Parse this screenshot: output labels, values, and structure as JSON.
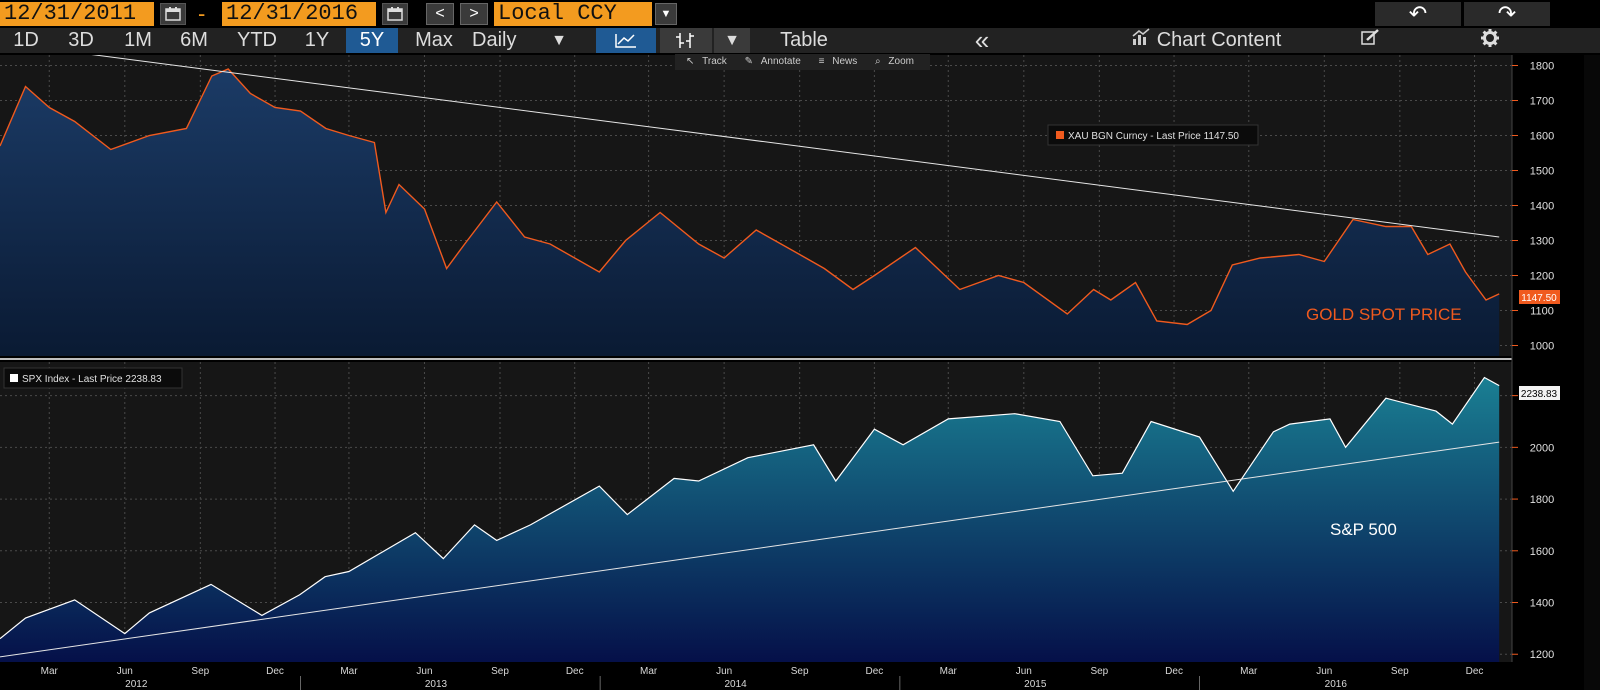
{
  "toolbar": {
    "start_date": "12/31/2011",
    "dash": "-",
    "end_date": "12/31/2016",
    "prev": "<",
    "next": ">",
    "currency": "Local CCY",
    "currency_caret": "▼",
    "undo": "↶",
    "redo": "↷"
  },
  "toolbar2": {
    "ranges": [
      "1D",
      "3D",
      "1M",
      "6M",
      "YTD",
      "1Y",
      "5Y",
      "Max"
    ],
    "selected_range": "5Y",
    "frequency": "Daily",
    "frequency_caret": "▼",
    "type_caret": "▼",
    "table": "Table",
    "collapse": "«",
    "chart_content": "Chart Content",
    "edit_icon": "pencil-icon",
    "settings_icon": "gear-icon"
  },
  "subtools": {
    "track": "Track",
    "annotate": "Annotate",
    "news": "News",
    "zoom": "Zoom"
  },
  "colors": {
    "gold_line": "#f05a1e",
    "gold_fill_top": "#1b3b66",
    "gold_fill_bottom": "#0a1a33",
    "spx_fill_top": "#1a7f93",
    "spx_fill_bottom": "#051049",
    "accent": "#f39b1f",
    "selected": "#1f5a94"
  },
  "chart_data": [
    {
      "type": "area",
      "legend": "XAU BGN Curncy - Last Price 1147.50",
      "last_value_label": "1147.50",
      "annotation": "GOLD SPOT PRICE",
      "ylim": [
        970,
        1830
      ],
      "yticks": [
        1000,
        1100,
        1200,
        1300,
        1400,
        1500,
        1600,
        1700,
        1800
      ],
      "grid": true,
      "trendline": {
        "start": [
          "2012-01-02",
          1865
        ],
        "end": [
          "2016-12-31",
          1310
        ]
      },
      "series": [
        {
          "x": [
            "2012-01-01",
            "2012-02-01",
            "2012-03-01",
            "2012-04-01",
            "2012-05-15",
            "2012-07-01",
            "2012-08-15",
            "2012-09-15",
            "2012-10-05",
            "2012-11-01",
            "2012-12-01",
            "2013-01-01",
            "2013-02-01",
            "2013-03-01",
            "2013-04-01",
            "2013-04-15",
            "2013-05-01",
            "2013-06-01",
            "2013-06-28",
            "2013-07-20",
            "2013-08-28",
            "2013-10-01",
            "2013-11-01",
            "2013-12-31",
            "2014-02-01",
            "2014-03-15",
            "2014-05-01",
            "2014-06-01",
            "2014-07-10",
            "2014-09-01",
            "2014-10-01",
            "2014-11-05",
            "2014-12-01",
            "2015-01-20",
            "2015-03-15",
            "2015-05-01",
            "2015-06-01",
            "2015-07-24",
            "2015-08-25",
            "2015-09-15",
            "2015-10-15",
            "2015-11-10",
            "2015-12-17",
            "2016-01-15",
            "2016-02-10",
            "2016-03-15",
            "2016-05-01",
            "2016-06-01",
            "2016-07-06",
            "2016-08-15",
            "2016-09-15",
            "2016-10-05",
            "2016-11-01",
            "2016-11-20",
            "2016-12-15",
            "2016-12-31"
          ],
          "y": [
            1570,
            1740,
            1680,
            1640,
            1560,
            1600,
            1620,
            1770,
            1790,
            1720,
            1680,
            1670,
            1620,
            1600,
            1580,
            1380,
            1460,
            1390,
            1220,
            1290,
            1410,
            1310,
            1290,
            1210,
            1300,
            1380,
            1290,
            1250,
            1330,
            1260,
            1220,
            1160,
            1200,
            1280,
            1160,
            1200,
            1180,
            1090,
            1160,
            1130,
            1180,
            1070,
            1060,
            1100,
            1230,
            1250,
            1260,
            1240,
            1360,
            1340,
            1340,
            1260,
            1290,
            1210,
            1130,
            1147.5
          ],
          "line_color": "#f05a1e"
        }
      ]
    },
    {
      "type": "area",
      "legend": "SPX Index - Last Price 2238.83",
      "last_value_label": "2238.83",
      "annotation": "S&P 500",
      "ylim": [
        1170,
        2330
      ],
      "yticks": [
        1200,
        1400,
        1600,
        1800,
        2000,
        2200
      ],
      "grid": true,
      "trendline": {
        "start": [
          "2012-01-01",
          1190
        ],
        "end": [
          "2016-12-31",
          2020
        ]
      },
      "series": [
        {
          "x": [
            "2012-01-01",
            "2012-02-01",
            "2012-04-01",
            "2012-06-01",
            "2012-07-01",
            "2012-09-14",
            "2012-11-15",
            "2012-12-31",
            "2013-01-31",
            "2013-03-01",
            "2013-05-21",
            "2013-06-24",
            "2013-08-01",
            "2013-08-28",
            "2013-10-08",
            "2013-12-31",
            "2014-02-03",
            "2014-04-01",
            "2014-05-01",
            "2014-06-30",
            "2014-09-18",
            "2014-10-15",
            "2014-12-01",
            "2015-01-05",
            "2015-03-01",
            "2015-05-21",
            "2015-07-15",
            "2015-08-24",
            "2015-09-29",
            "2015-11-03",
            "2016-01-01",
            "2016-02-11",
            "2016-03-31",
            "2016-04-20",
            "2016-06-08",
            "2016-06-27",
            "2016-08-15",
            "2016-10-15",
            "2016-11-04",
            "2016-12-13",
            "2016-12-31"
          ],
          "y": [
            1260,
            1340,
            1410,
            1280,
            1360,
            1470,
            1350,
            1430,
            1500,
            1520,
            1670,
            1570,
            1700,
            1640,
            1700,
            1850,
            1740,
            1880,
            1870,
            1960,
            2010,
            1870,
            2070,
            2010,
            2110,
            2130,
            2100,
            1890,
            1900,
            2100,
            2040,
            1830,
            2060,
            2090,
            2110,
            2000,
            2190,
            2140,
            2090,
            2270,
            2238.83
          ],
          "line_color": "#ffffff"
        }
      ]
    }
  ],
  "xaxis": {
    "month_labels": [
      {
        "label": "Mar",
        "date": "2012-03-01"
      },
      {
        "label": "Jun",
        "date": "2012-06-01"
      },
      {
        "label": "Sep",
        "date": "2012-09-01"
      },
      {
        "label": "Dec",
        "date": "2012-12-01"
      },
      {
        "label": "Mar",
        "date": "2013-03-01"
      },
      {
        "label": "Jun",
        "date": "2013-06-01"
      },
      {
        "label": "Sep",
        "date": "2013-09-01"
      },
      {
        "label": "Dec",
        "date": "2013-12-01"
      },
      {
        "label": "Mar",
        "date": "2014-03-01"
      },
      {
        "label": "Jun",
        "date": "2014-06-01"
      },
      {
        "label": "Sep",
        "date": "2014-09-01"
      },
      {
        "label": "Dec",
        "date": "2014-12-01"
      },
      {
        "label": "Mar",
        "date": "2015-03-01"
      },
      {
        "label": "Jun",
        "date": "2015-06-01"
      },
      {
        "label": "Sep",
        "date": "2015-09-01"
      },
      {
        "label": "Dec",
        "date": "2015-12-01"
      },
      {
        "label": "Mar",
        "date": "2016-03-01"
      },
      {
        "label": "Jun",
        "date": "2016-06-01"
      },
      {
        "label": "Sep",
        "date": "2016-09-01"
      },
      {
        "label": "Dec",
        "date": "2016-12-01"
      }
    ],
    "year_labels": [
      {
        "label": "2012",
        "date": "2012-06-15"
      },
      {
        "label": "2013",
        "date": "2013-06-15"
      },
      {
        "label": "2014",
        "date": "2014-06-15"
      },
      {
        "label": "2015",
        "date": "2015-06-15"
      },
      {
        "label": "2016",
        "date": "2016-06-15"
      }
    ]
  }
}
